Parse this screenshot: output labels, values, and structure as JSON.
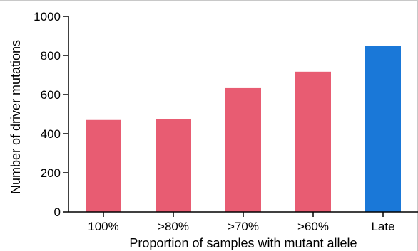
{
  "chart_data": {
    "type": "bar",
    "title": "",
    "xlabel": "Proportion of samples with mutant allele",
    "ylabel": "Number of driver mutations",
    "categories": [
      "100%",
      ">80%",
      ">70%",
      ">60%",
      "Late"
    ],
    "values": [
      470,
      475,
      633,
      717,
      848
    ],
    "bar_colors": [
      "#e85c72",
      "#e85c72",
      "#e85c72",
      "#e85c72",
      "#1a78d8"
    ],
    "ylim": [
      0,
      1000
    ],
    "yticks": [
      0,
      200,
      400,
      600,
      800,
      1000
    ],
    "grid": false,
    "legend": "none"
  }
}
